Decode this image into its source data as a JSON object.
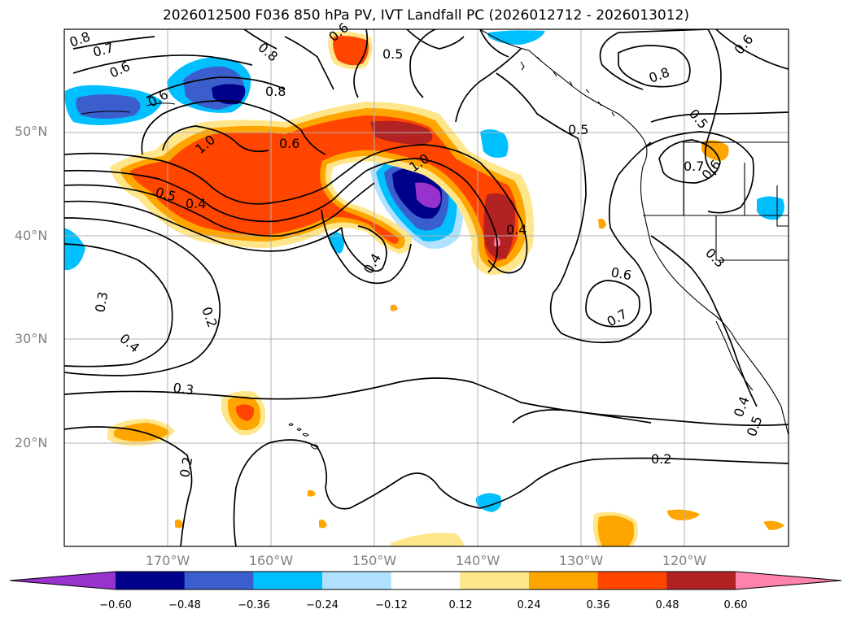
{
  "title": "2026012500 F036 850 hPa PV, IVT Landfall PC (2026012712 - 2026013012)",
  "lat_labels": [
    "50°N",
    "40°N",
    "30°N",
    "20°N"
  ],
  "lon_labels": [
    "170°W",
    "160°W",
    "150°W",
    "140°W",
    "130°W",
    "120°W"
  ],
  "contour_labels": [
    "0.8",
    "0.7",
    "0.6",
    "0.6",
    "0.8",
    "0.8",
    "0.6",
    "0.5",
    "0.8",
    "0.6",
    "1.0",
    "0.6",
    "1.0",
    "0.5",
    "0.4",
    "0.4",
    "0.4",
    "0.5",
    "0.5",
    "0.7",
    "0.6",
    "0.3",
    "0.6",
    "0.7",
    "0.3",
    "0.2",
    "0.4",
    "0.3",
    "0.2",
    "0.2",
    "0.4",
    "0.5"
  ],
  "colorbar": {
    "ticks": [
      "−0.60",
      "−0.48",
      "−0.36",
      "−0.24",
      "−0.12",
      "0.12",
      "0.24",
      "0.36",
      "0.48",
      "0.60"
    ],
    "colors": [
      "#9932cc",
      "#00008b",
      "#3a5fcd",
      "#00bfff",
      "#b0e2ff",
      "#ffffff",
      "#ffe68a",
      "#ffa500",
      "#ff4500",
      "#b22222",
      "#ff82ab"
    ]
  }
}
